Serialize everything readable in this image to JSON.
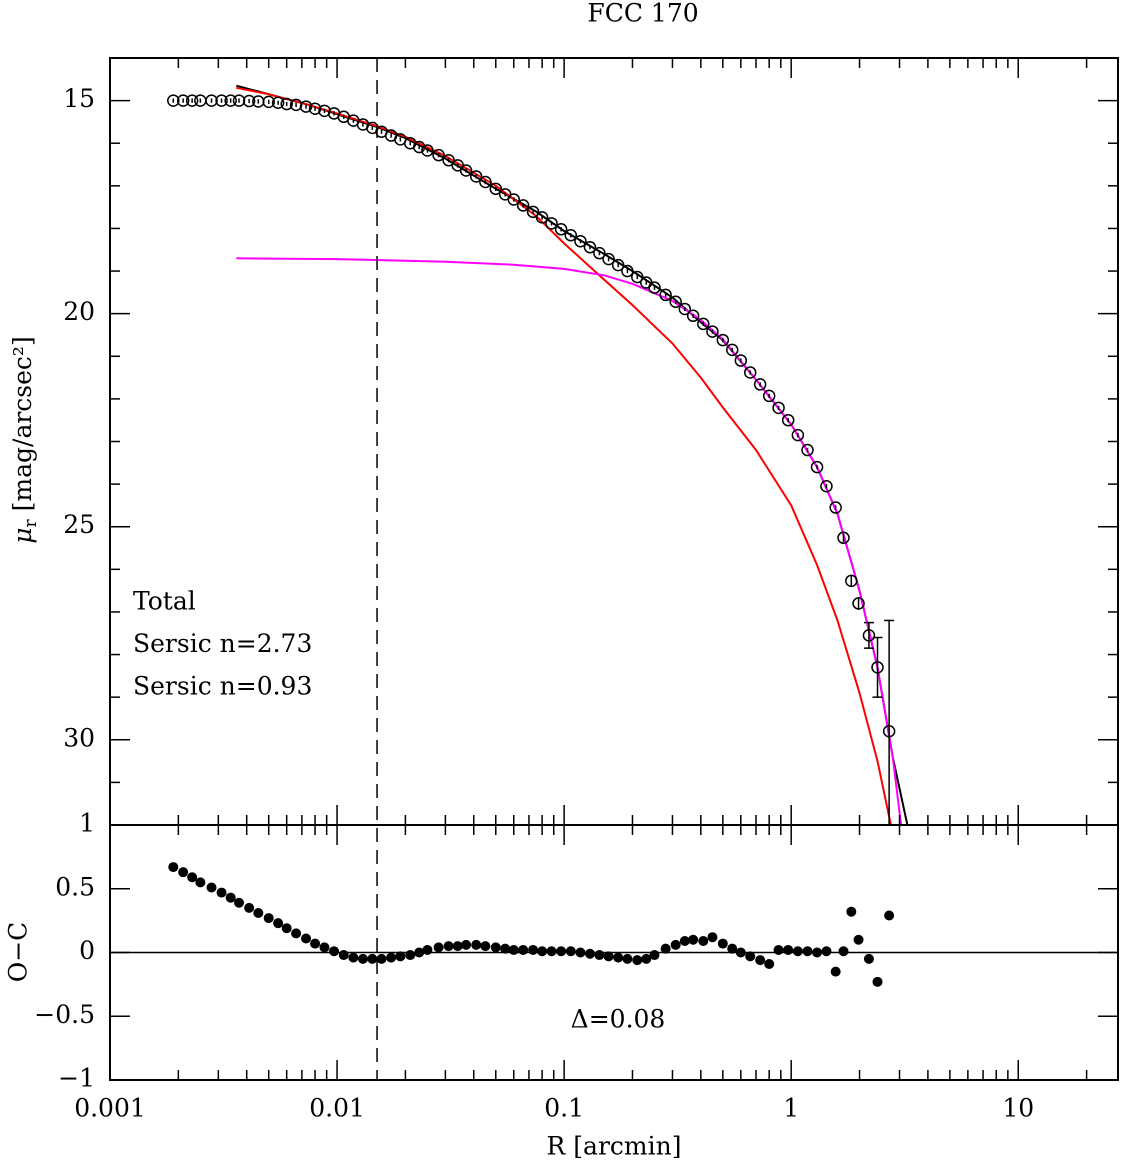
{
  "chart_data": [
    {
      "type": "profile",
      "title": "FCC 170",
      "sharex": true,
      "ylabel_symbol": "μ",
      "ylabel_sub": "r",
      "ylabel_rest": " [mag/arcsec²]",
      "ylim": [
        32,
        14
      ],
      "yticks": [
        15,
        20,
        25,
        30
      ],
      "yminorticks": [
        16,
        17,
        18,
        19,
        21,
        22,
        23,
        24,
        26,
        27,
        28,
        29,
        31
      ],
      "vline": 0.015,
      "x": [
        0.0019,
        0.0021,
        0.0023,
        0.0025,
        0.0028,
        0.0031,
        0.0034,
        0.0037,
        0.0041,
        0.0045,
        0.005,
        0.0055,
        0.006,
        0.0066,
        0.0073,
        0.008,
        0.0088,
        0.0097,
        0.0107,
        0.0118,
        0.013,
        0.0143,
        0.0157,
        0.0173,
        0.019,
        0.021,
        0.023,
        0.025,
        0.028,
        0.031,
        0.034,
        0.037,
        0.041,
        0.045,
        0.05,
        0.055,
        0.06,
        0.066,
        0.073,
        0.08,
        0.088,
        0.097,
        0.107,
        0.118,
        0.13,
        0.143,
        0.157,
        0.173,
        0.19,
        0.21,
        0.23,
        0.25,
        0.28,
        0.31,
        0.34,
        0.37,
        0.41,
        0.45,
        0.5,
        0.55,
        0.6,
        0.66,
        0.73,
        0.8,
        0.88,
        0.97,
        1.07,
        1.18,
        1.3,
        1.43,
        1.57,
        1.7,
        1.84,
        1.98,
        2.2,
        2.4,
        2.7
      ],
      "values": [
        15.0,
        15.0,
        15.0,
        15.0,
        15.0,
        15.0,
        15.0,
        15.0,
        15.01,
        15.02,
        15.03,
        15.05,
        15.08,
        15.1,
        15.14,
        15.19,
        15.24,
        15.3,
        15.38,
        15.47,
        15.56,
        15.64,
        15.73,
        15.82,
        15.91,
        16.0,
        16.09,
        16.17,
        16.28,
        16.4,
        16.52,
        16.64,
        16.78,
        16.91,
        17.07,
        17.2,
        17.32,
        17.46,
        17.61,
        17.74,
        17.88,
        18.02,
        18.16,
        18.3,
        18.44,
        18.58,
        18.72,
        18.86,
        19.0,
        19.14,
        19.27,
        19.39,
        19.56,
        19.72,
        19.89,
        20.05,
        20.24,
        20.42,
        20.62,
        20.85,
        21.1,
        21.38,
        21.66,
        21.93,
        22.21,
        22.5,
        22.85,
        23.2,
        23.6,
        24.05,
        24.55,
        25.26,
        26.27,
        26.8,
        27.55,
        28.3,
        29.8
      ],
      "errors": [
        0.05,
        0.05,
        0.05,
        0.05,
        0.05,
        0.05,
        0.05,
        0.05,
        0.05,
        0.05,
        0.05,
        0.05,
        0.05,
        0.05,
        0.05,
        0.05,
        0.05,
        0.05,
        0.05,
        0.05,
        0.05,
        0.05,
        0.05,
        0.05,
        0.05,
        0.05,
        0.05,
        0.05,
        0.05,
        0.05,
        0.05,
        0.05,
        0.05,
        0.05,
        0.05,
        0.05,
        0.05,
        0.05,
        0.05,
        0.05,
        0.05,
        0.05,
        0.05,
        0.05,
        0.05,
        0.05,
        0.05,
        0.05,
        0.05,
        0.05,
        0.05,
        0.05,
        0.05,
        0.05,
        0.05,
        0.05,
        0.05,
        0.05,
        0.05,
        0.05,
        0.05,
        0.05,
        0.05,
        0.05,
        0.05,
        0.05,
        0.05,
        0.05,
        0.05,
        0.05,
        0.05,
        0.1,
        0.12,
        0.15,
        0.3,
        0.7,
        2.6
      ],
      "series": [
        {
          "name": "Total",
          "color": "#000000",
          "x": [
            0.0036,
            0.005,
            0.0075,
            0.01,
            0.015,
            0.02,
            0.03,
            0.05,
            0.075,
            0.1,
            0.15,
            0.2,
            0.3,
            0.4,
            0.5,
            0.7,
            1.0,
            1.3,
            1.6,
            2.0,
            2.4,
            2.8,
            3.25
          ],
          "values": [
            14.65,
            14.85,
            15.1,
            15.32,
            15.62,
            15.88,
            16.36,
            17.07,
            17.6,
            18.06,
            18.6,
            19.0,
            19.62,
            20.2,
            20.62,
            21.55,
            22.6,
            23.6,
            24.7,
            26.5,
            28.3,
            30.4,
            32
          ]
        },
        {
          "name": "Sersic n=2.73",
          "color": "#ff0000",
          "x": [
            0.0036,
            0.005,
            0.0075,
            0.01,
            0.015,
            0.02,
            0.03,
            0.05,
            0.075,
            0.1,
            0.15,
            0.2,
            0.3,
            0.4,
            0.5,
            0.7,
            1.0,
            1.3,
            1.6,
            2.0,
            2.4,
            2.75
          ],
          "values": [
            14.7,
            14.85,
            15.1,
            15.3,
            15.6,
            15.85,
            16.3,
            17.0,
            17.7,
            18.35,
            19.2,
            19.8,
            20.7,
            21.5,
            22.2,
            23.2,
            24.5,
            25.9,
            27.2,
            28.9,
            30.5,
            32
          ]
        },
        {
          "name": "Sersic n=0.93",
          "color": "#ff00ff",
          "x": [
            0.0036,
            0.01,
            0.03,
            0.06,
            0.1,
            0.15,
            0.2,
            0.3,
            0.4,
            0.5,
            0.7,
            1.0,
            1.3,
            1.6,
            2.0,
            2.4,
            2.8,
            3.05
          ],
          "values": [
            18.7,
            18.72,
            18.78,
            18.85,
            18.95,
            19.1,
            19.3,
            19.7,
            20.15,
            20.6,
            21.55,
            22.6,
            23.6,
            24.7,
            26.5,
            28.3,
            30.4,
            32
          ]
        }
      ]
    },
    {
      "type": "residuals",
      "xlabel": "R [arcmin]",
      "ylabel": "O−C",
      "annotation": "Δ=0.08",
      "xlog": true,
      "xlim": [
        0.001,
        27.5
      ],
      "xticks": [
        0.001,
        0.01,
        0.1,
        1,
        10
      ],
      "xminorticks": [
        0.002,
        0.003,
        0.004,
        0.005,
        0.006,
        0.007,
        0.008,
        0.009,
        0.02,
        0.03,
        0.04,
        0.05,
        0.06,
        0.07,
        0.08,
        0.09,
        0.2,
        0.3,
        0.4,
        0.5,
        0.6,
        0.7,
        0.8,
        0.9,
        2,
        3,
        4,
        5,
        6,
        7,
        8,
        9,
        20
      ],
      "ylim": [
        -1,
        1
      ],
      "yticks": [
        {
          "value": -1,
          "label": "−1"
        },
        {
          "value": -0.5,
          "label": "−0.5"
        },
        0,
        0.5,
        1
      ],
      "hline": 0,
      "color": "#000000",
      "x": [
        0.0019,
        0.0021,
        0.0023,
        0.0025,
        0.0028,
        0.0031,
        0.0034,
        0.0037,
        0.0041,
        0.0045,
        0.005,
        0.0055,
        0.006,
        0.0066,
        0.0073,
        0.008,
        0.0088,
        0.0097,
        0.0107,
        0.0118,
        0.013,
        0.0143,
        0.0157,
        0.0173,
        0.019,
        0.021,
        0.023,
        0.025,
        0.028,
        0.031,
        0.034,
        0.037,
        0.041,
        0.045,
        0.05,
        0.055,
        0.06,
        0.066,
        0.073,
        0.08,
        0.088,
        0.097,
        0.107,
        0.118,
        0.13,
        0.143,
        0.157,
        0.173,
        0.19,
        0.21,
        0.23,
        0.25,
        0.28,
        0.31,
        0.34,
        0.37,
        0.41,
        0.45,
        0.5,
        0.55,
        0.6,
        0.66,
        0.73,
        0.8,
        0.88,
        0.97,
        1.07,
        1.18,
        1.3,
        1.43,
        1.57,
        1.7,
        1.84,
        1.98,
        2.2,
        2.4,
        2.7
      ],
      "values": [
        0.67,
        0.63,
        0.59,
        0.55,
        0.51,
        0.47,
        0.43,
        0.39,
        0.35,
        0.31,
        0.27,
        0.23,
        0.19,
        0.15,
        0.11,
        0.07,
        0.04,
        0.01,
        -0.02,
        -0.04,
        -0.05,
        -0.05,
        -0.05,
        -0.04,
        -0.03,
        -0.02,
        0.0,
        0.02,
        0.04,
        0.05,
        0.05,
        0.06,
        0.06,
        0.05,
        0.04,
        0.03,
        0.02,
        0.02,
        0.02,
        0.01,
        0.01,
        0.01,
        0.01,
        0.0,
        -0.01,
        -0.02,
        -0.03,
        -0.04,
        -0.05,
        -0.06,
        -0.05,
        -0.02,
        0.03,
        0.06,
        0.09,
        0.1,
        0.09,
        0.12,
        0.07,
        0.03,
        0.0,
        -0.03,
        -0.06,
        -0.09,
        0.02,
        0.02,
        0.01,
        0.01,
        0.0,
        0.01,
        -0.15,
        0.01,
        0.32,
        0.1,
        -0.05,
        -0.23,
        0.29
      ]
    }
  ]
}
